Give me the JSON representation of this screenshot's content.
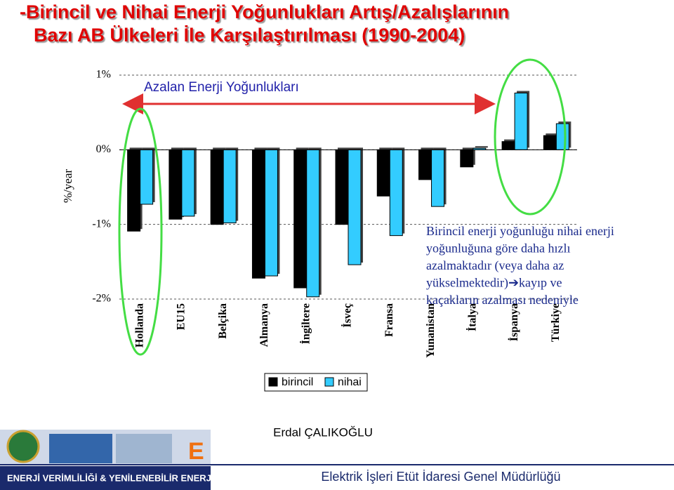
{
  "title_lines": [
    "-Birincil ve Nihai Enerji Yoğunlukları Artış/Azalışlarının",
    "Bazı AB Ülkeleri İle Karşılaştırılması (1990-2004)"
  ],
  "chart_data": {
    "type": "bar",
    "ylabel": "%/year",
    "header_note": "Azalan Enerji Yoğunlukları",
    "annotation": [
      "Birincil enerji yoğunluğu nihai enerji",
      "yoğunluğuna göre daha hızlı",
      "azalmaktadır (veya daha az",
      "yükselmektedir)➔kayıp ve",
      "kaçakların azalması nedeniyle"
    ],
    "categories": [
      "Hollanda",
      "EU15",
      "Belçika",
      "Almanya",
      "İngiltere",
      "İsveç",
      "Fransa",
      "Yunanistan",
      "İtalya",
      "İspanya",
      "Türkiye"
    ],
    "series": [
      {
        "name": "birincil",
        "color": "#000000",
        "values": [
          -1.09,
          -0.93,
          -1.0,
          -1.72,
          -1.85,
          -1.0,
          -0.62,
          -0.4,
          -0.23,
          0.11,
          0.19
        ]
      },
      {
        "name": "nihai",
        "color": "#33ccff",
        "values": [
          -0.73,
          -0.89,
          -0.98,
          -1.69,
          -1.97,
          -1.54,
          -1.15,
          -0.76,
          0.02,
          0.76,
          0.35
        ]
      }
    ],
    "ylim": [
      -2,
      1
    ],
    "yticks": [
      {
        "value": 1,
        "label": "1%"
      },
      {
        "value": 0,
        "label": "0%"
      },
      {
        "value": -1,
        "label": "-1%"
      },
      {
        "value": -2,
        "label": "-2%"
      }
    ],
    "grid": true
  },
  "author": "Erdal ÇALIKOĞLU",
  "footer_left": "ENERJİ VERİMLİLİĞİ & YENİLENEBİLİR ENERJİ",
  "footer_right": "Elektrik İşleri Etüt İdaresi Genel Müdürlüğü"
}
